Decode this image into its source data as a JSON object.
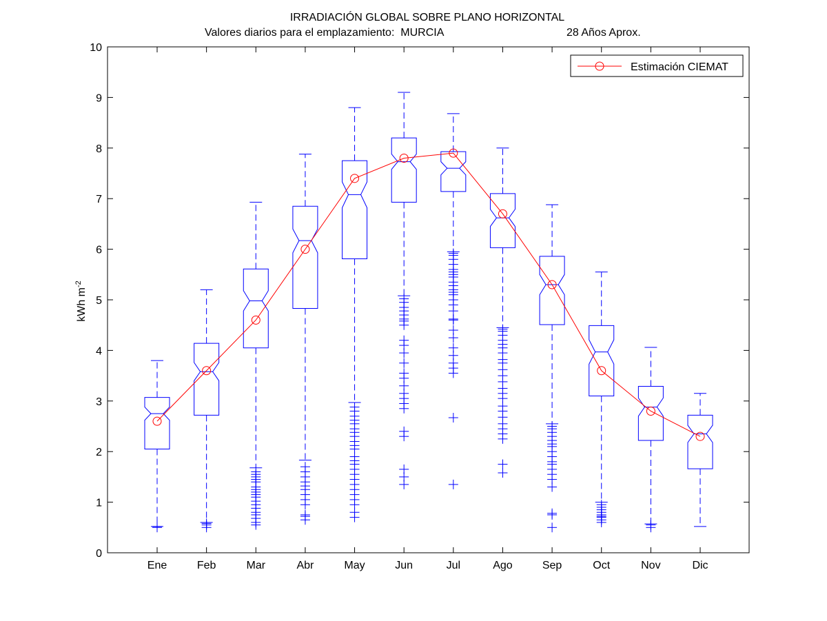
{
  "title": "IRRADIACIÓN GLOBAL SOBRE PLANO HORIZONTAL",
  "subtitle_left": "Valores diarios para el emplazamiento:  MURCIA",
  "subtitle_right": "28 Años Aprox.",
  "colors": {
    "box": "#0000ff",
    "estimate": "#ff0000",
    "axis": "#000000"
  },
  "chart_data": {
    "type": "box",
    "title": "IRRADIACIÓN GLOBAL SOBRE PLANO HORIZONTAL",
    "subtitle": "Valores diarios para el emplazamiento:  MURCIA                        28 Años Aprox.",
    "xlabel": "",
    "ylabel": "kWh m-2",
    "ylabel_base": "kWh m",
    "ylabel_sup": "-2",
    "ylim": [
      0,
      10
    ],
    "yticks": [
      0,
      1,
      2,
      3,
      4,
      5,
      6,
      7,
      8,
      9,
      10
    ],
    "grid": false,
    "legend_position": "top-right",
    "categories": [
      "Ene",
      "Feb",
      "Mar",
      "Abr",
      "May",
      "Jun",
      "Jul",
      "Ago",
      "Sep",
      "Oct",
      "Nov",
      "Dic"
    ],
    "boxes": [
      {
        "q1": 2.05,
        "median": 2.75,
        "q3": 3.07,
        "notch_lo": 2.62,
        "notch_hi": 2.88,
        "whisker_lo": 0.52,
        "whisker_hi": 3.8,
        "outliers": [
          0.5,
          0.52
        ]
      },
      {
        "q1": 2.72,
        "median": 3.58,
        "q3": 4.14,
        "notch_lo": 3.4,
        "notch_hi": 3.76,
        "whisker_lo": 0.6,
        "whisker_hi": 5.2,
        "outliers": [
          0.5,
          0.55,
          0.58
        ]
      },
      {
        "q1": 4.05,
        "median": 4.98,
        "q3": 5.61,
        "notch_lo": 4.78,
        "notch_hi": 5.18,
        "whisker_lo": 1.68,
        "whisker_hi": 6.93,
        "outliers": [
          0.55,
          0.6,
          0.68,
          0.75,
          0.8,
          0.88,
          0.95,
          1.02,
          1.1,
          1.15,
          1.2,
          1.25,
          1.3,
          1.4,
          1.45,
          1.5,
          1.55,
          1.6
        ]
      },
      {
        "q1": 4.83,
        "median": 6.17,
        "q3": 6.85,
        "notch_lo": 5.93,
        "notch_hi": 6.4,
        "whisker_lo": 1.83,
        "whisker_hi": 7.88,
        "outliers": [
          0.65,
          0.72,
          0.75,
          0.95,
          1.05,
          1.15,
          1.25,
          1.32,
          1.4,
          1.5,
          1.6,
          1.7
        ]
      },
      {
        "q1": 5.81,
        "median": 7.08,
        "q3": 7.75,
        "notch_lo": 6.82,
        "notch_hi": 7.33,
        "whisker_lo": 2.97,
        "whisker_hi": 8.8,
        "outliers": [
          0.7,
          0.8,
          0.95,
          1.05,
          1.15,
          1.25,
          1.35,
          1.45,
          1.55,
          1.65,
          1.75,
          1.82,
          1.9,
          2.05,
          2.12,
          2.2,
          2.3,
          2.38,
          2.45,
          2.55,
          2.62,
          2.7,
          2.8,
          2.88
        ]
      },
      {
        "q1": 6.93,
        "median": 7.73,
        "q3": 8.2,
        "notch_lo": 7.58,
        "notch_hi": 7.88,
        "whisker_lo": 5.08,
        "whisker_hi": 9.1,
        "outliers": [
          1.35,
          1.5,
          1.65,
          2.3,
          2.4,
          2.85,
          2.95,
          3.05,
          3.15,
          3.3,
          3.45,
          3.55,
          3.75,
          3.95,
          4.1,
          4.2,
          4.5,
          4.58,
          4.62,
          4.7,
          4.78,
          4.85,
          4.95,
          5.02
        ]
      },
      {
        "q1": 7.14,
        "median": 7.6,
        "q3": 7.93,
        "notch_lo": 7.47,
        "notch_hi": 7.73,
        "whisker_lo": 5.95,
        "whisker_hi": 8.68,
        "outliers": [
          1.35,
          2.67,
          3.55,
          3.65,
          3.75,
          3.9,
          4.05,
          4.25,
          4.4,
          4.6,
          4.62,
          4.78,
          4.9,
          5.0,
          5.1,
          5.15,
          5.2,
          5.28,
          5.35,
          5.45,
          5.5,
          5.55,
          5.6,
          5.7,
          5.8,
          5.88,
          5.92
        ]
      },
      {
        "q1": 6.03,
        "median": 6.62,
        "q3": 7.1,
        "notch_lo": 6.45,
        "notch_hi": 6.79,
        "whisker_lo": 4.45,
        "whisker_hi": 8.0,
        "outliers": [
          1.58,
          1.75,
          2.25,
          2.35,
          2.45,
          2.55,
          2.68,
          2.8,
          2.9,
          3.05,
          3.15,
          3.25,
          3.38,
          3.5,
          3.62,
          3.75,
          3.82,
          3.95,
          4.05,
          4.12,
          4.2,
          4.3,
          4.38,
          4.42
        ]
      },
      {
        "q1": 4.51,
        "median": 5.3,
        "q3": 5.86,
        "notch_lo": 5.1,
        "notch_hi": 5.5,
        "whisker_lo": 2.55,
        "whisker_hi": 6.88,
        "outliers": [
          0.5,
          0.75,
          0.78,
          1.3,
          1.45,
          1.55,
          1.65,
          1.75,
          1.8,
          1.9,
          2.0,
          2.1,
          2.15,
          2.22,
          2.3,
          2.38,
          2.45,
          2.5
        ]
      },
      {
        "q1": 3.1,
        "median": 3.97,
        "q3": 4.49,
        "notch_lo": 3.73,
        "notch_hi": 4.21,
        "whisker_lo": 1.0,
        "whisker_hi": 5.55,
        "outliers": [
          0.6,
          0.65,
          0.7,
          0.72,
          0.75,
          0.8,
          0.85,
          0.9,
          0.95
        ]
      },
      {
        "q1": 2.22,
        "median": 2.88,
        "q3": 3.29,
        "notch_lo": 2.7,
        "notch_hi": 3.06,
        "whisker_lo": 0.57,
        "whisker_hi": 4.06,
        "outliers": [
          0.5,
          0.55
        ]
      },
      {
        "q1": 1.66,
        "median": 2.35,
        "q3": 2.72,
        "notch_lo": 2.18,
        "notch_hi": 2.52,
        "whisker_lo": 0.52,
        "whisker_hi": 3.15,
        "outliers": []
      }
    ],
    "series": [
      {
        "name": "Estimación CIEMAT",
        "type": "line",
        "marker": "circle",
        "values": [
          2.6,
          3.6,
          4.6,
          6.0,
          7.4,
          7.8,
          7.9,
          6.7,
          5.3,
          3.6,
          2.8,
          2.3
        ]
      }
    ]
  }
}
